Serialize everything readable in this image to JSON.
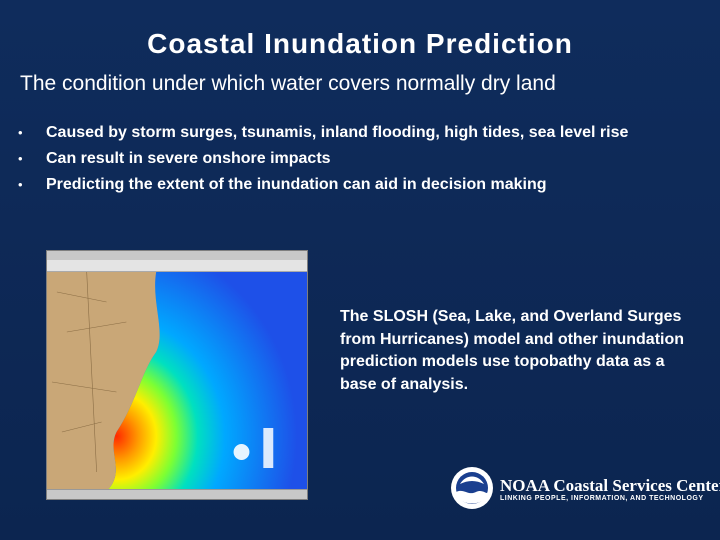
{
  "slide": {
    "title": "Coastal Inundation Prediction",
    "subtitle": "The condition under which water covers normally dry land",
    "bullets": [
      "Caused by storm surges, tsunamis, inland flooding, high tides, sea level rise",
      "Can result in severe onshore impacts",
      "Predicting the extent of the inundation can aid in decision making"
    ],
    "bullet_glyph": "•",
    "caption": "The SLOSH (Sea, Lake, and Overland Surges from Hurricanes) model and other inundation prediction models use topobathy data as a base of analysis."
  },
  "screenshot": {
    "description_icon": "slosh-model-map-screenshot"
  },
  "logo": {
    "name": "NOAA Coastal Services Center",
    "tagline": "LINKING PEOPLE, INFORMATION, AND TECHNOLOGY",
    "icon": "noaa-seal-icon"
  },
  "colors": {
    "background": "#0e2a58",
    "text": "#ffffff",
    "ocean": "#1e73e0",
    "land": "#c9a777"
  }
}
